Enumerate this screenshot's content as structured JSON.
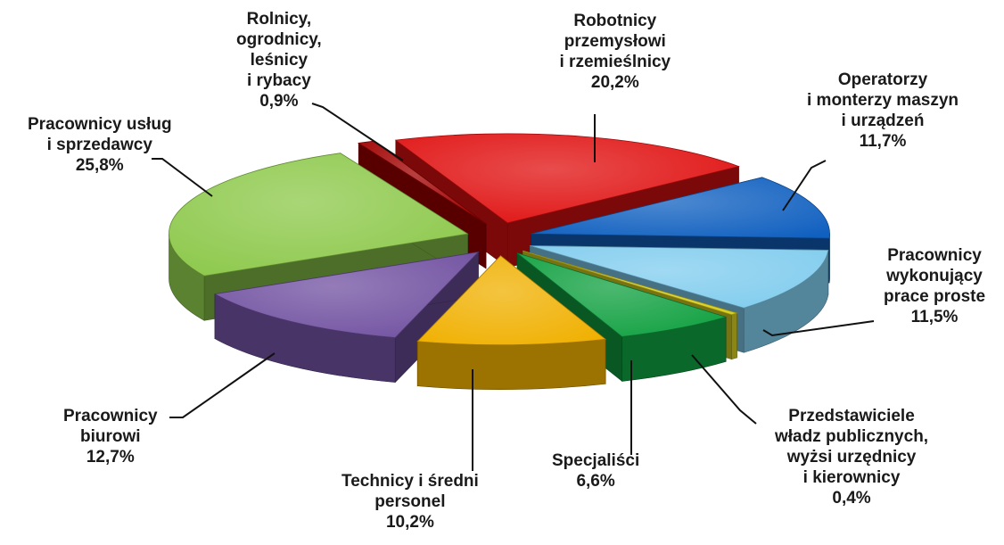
{
  "chart_data": {
    "type": "pie",
    "style": "3d-exploded",
    "legend": "none",
    "slices": [
      {
        "label_lines": [
          "Robotnicy",
          "przemysłowi",
          "i rzemieślnicy"
        ],
        "value": 20.2,
        "value_label": "20,2%",
        "color": "#e01010"
      },
      {
        "label_lines": [
          "Operatorzy",
          "i monterzy maszyn",
          "i urządzeń"
        ],
        "value": 11.7,
        "value_label": "11,7%",
        "color": "#1060c0"
      },
      {
        "label_lines": [
          "Pracownicy",
          "wykonujący",
          "prace proste"
        ],
        "value": 11.5,
        "value_label": "11,5%",
        "color": "#80ccee"
      },
      {
        "label_lines": [
          "Przedstawiciele",
          "władz publicznych,",
          "wyżsi urzędnicy",
          "i kierownicy"
        ],
        "value": 0.4,
        "value_label": "0,4%",
        "color": "#d8d020"
      },
      {
        "label_lines": [
          "Specjaliści"
        ],
        "value": 6.6,
        "value_label": "6,6%",
        "color": "#10a040"
      },
      {
        "label_lines": [
          "Technicy i średni",
          "personel"
        ],
        "value": 10.2,
        "value_label": "10,2%",
        "color": "#f0b000"
      },
      {
        "label_lines": [
          "Pracownicy",
          "biurowi"
        ],
        "value": 12.7,
        "value_label": "12,7%",
        "color": "#7050a0"
      },
      {
        "label_lines": [
          "Pracownicy usług",
          "i sprzedawcy"
        ],
        "value": 25.8,
        "value_label": "25,8%",
        "color": "#8cc84a"
      },
      {
        "label_lines": [
          "Rolnicy,",
          "ogrodnicy,",
          "leśnicy",
          "i rybacy"
        ],
        "value": 0.9,
        "value_label": "0,9%",
        "color": "#a00000"
      }
    ]
  }
}
